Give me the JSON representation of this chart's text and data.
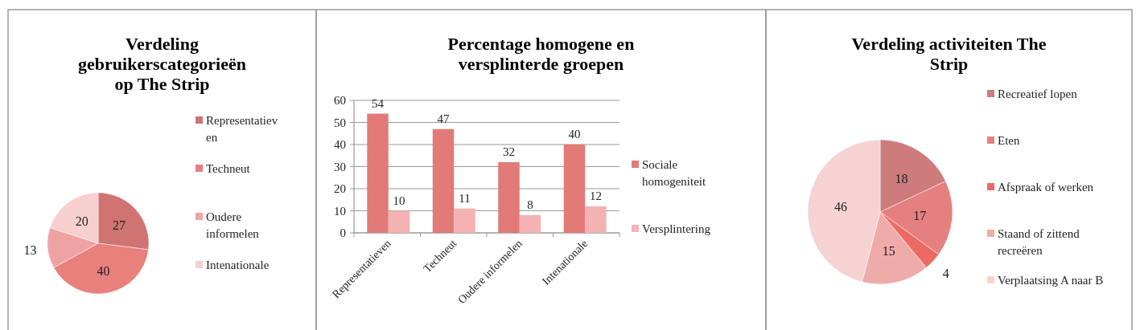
{
  "chart_data": [
    {
      "type": "pie",
      "title": "Verdeling gebruikerscategorieën op The Strip",
      "categories": [
        "Representatieven",
        "Techneut",
        "Oudere informelen",
        "Intenationale"
      ],
      "values": [
        27,
        40,
        13,
        20
      ],
      "colors": [
        "#cf7472",
        "#e8807c",
        "#efa2a2",
        "#f7cfcf"
      ],
      "data_labels": true,
      "legend": "right"
    },
    {
      "type": "bar",
      "title": "Percentage homogene en versplinterde groepen",
      "categories": [
        "Representatieven",
        "Techneut",
        "Oudere informelen",
        "Intenationale"
      ],
      "series": [
        {
          "name": "Sociale homogeniteit",
          "color": "#e27a78",
          "values": [
            54,
            47,
            32,
            40
          ]
        },
        {
          "name": "Versplintering",
          "color": "#f5b2b2",
          "values": [
            10,
            11,
            8,
            12
          ]
        }
      ],
      "ylim": [
        0,
        60
      ],
      "yticks": [
        0,
        10,
        20,
        30,
        40,
        50,
        60
      ],
      "grid": "y",
      "data_labels": true,
      "legend": "right"
    },
    {
      "type": "pie",
      "title": "Verdeling activiteiten The Strip",
      "categories": [
        "Recreatief lopen",
        "Eten",
        "Afspraak of werken",
        "Staand of zittend recreëren",
        "Verplaatsing A naar B"
      ],
      "values": [
        18,
        17,
        4,
        15,
        46
      ],
      "colors": [
        "#cd7b7b",
        "#e58080",
        "#ec6a64",
        "#efaaaa",
        "#f7d2d2"
      ],
      "data_labels": true,
      "legend": "right"
    }
  ]
}
